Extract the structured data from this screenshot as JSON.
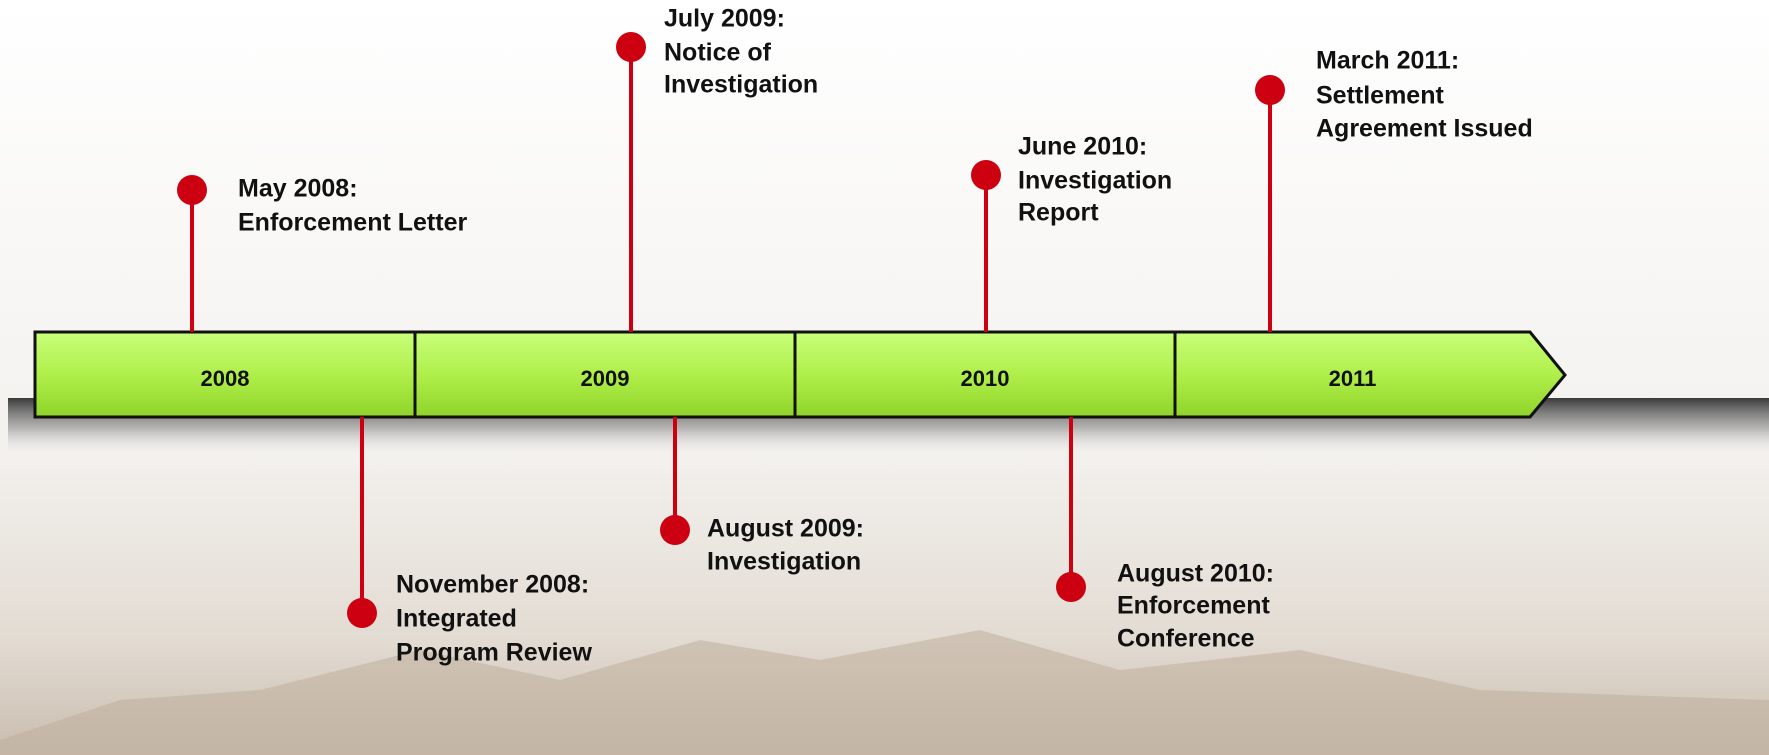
{
  "timeline": {
    "years": [
      "2008",
      "2009",
      "2010",
      "2011"
    ],
    "events": [
      {
        "lines": [
          "May 2008:",
          "Enforcement Letter"
        ]
      },
      {
        "lines": [
          "July 2009:",
          "Notice of",
          "Investigation"
        ]
      },
      {
        "lines": [
          "June 2010:",
          "Investigation",
          "Report"
        ]
      },
      {
        "lines": [
          "March 2011:",
          "Settlement",
          "Agreement Issued"
        ]
      },
      {
        "lines": [
          "November 2008:",
          "Integrated",
          "Program Review"
        ]
      },
      {
        "lines": [
          "August 2009:",
          "Investigation"
        ]
      },
      {
        "lines": [
          "August 2010:",
          "Enforcement",
          "Conference"
        ]
      }
    ]
  }
}
